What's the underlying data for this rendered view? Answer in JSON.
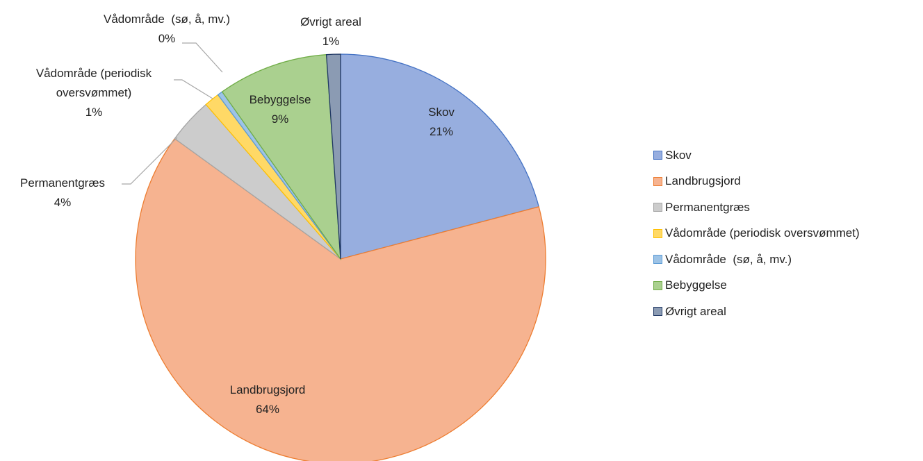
{
  "chart_data": {
    "type": "pie",
    "categories": [
      "Skov",
      "Landbrugsjord",
      "Permanentgræs",
      "Vådområde (periodisk oversvømmet)",
      "Vådområde  (sø, å, mv.)",
      "Bebyggelse",
      "Øvrigt areal"
    ],
    "values": [
      20.9,
      64.1,
      3.6,
      1.2,
      0.4,
      8.7,
      1.1
    ],
    "value_labels": [
      "21%",
      "64%",
      "4%",
      "1%",
      "0%",
      "9%",
      "1%"
    ],
    "colors": [
      "#97aedf",
      "#f6b390",
      "#cccccc",
      "#ffd966",
      "#9dc3e6",
      "#aad08f",
      "#8b9bb3"
    ],
    "edge_colors": [
      "#4472c4",
      "#ed7d31",
      "#a5a5a5",
      "#ffc000",
      "#5b9bd5",
      "#70ad47",
      "#203864"
    ],
    "legend": "right"
  }
}
